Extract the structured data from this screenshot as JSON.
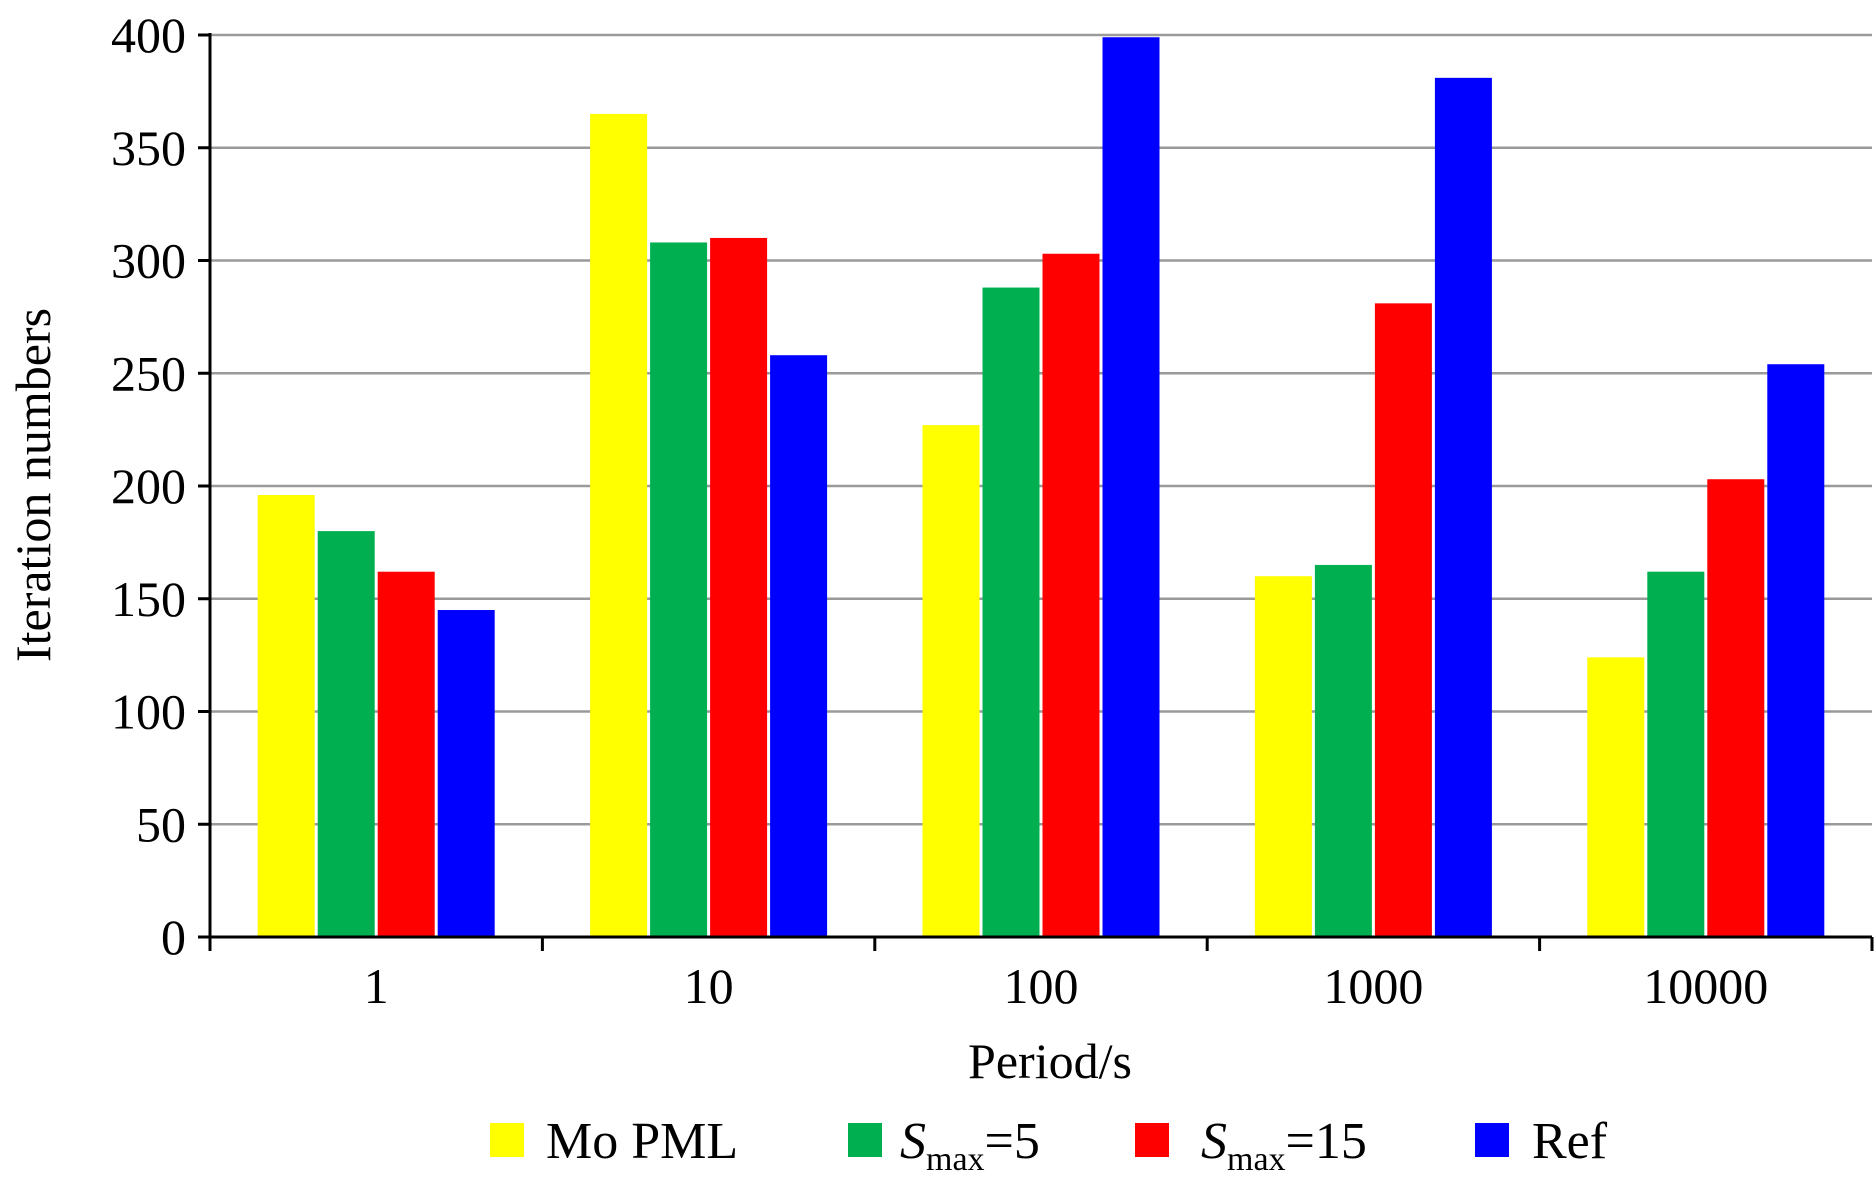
{
  "chart_data": {
    "type": "bar",
    "title": "",
    "xlabel": "Period/s",
    "ylabel": "Iteration numbers",
    "ylim": [
      0,
      400
    ],
    "yticks": [
      0,
      50,
      100,
      150,
      200,
      250,
      300,
      350,
      400
    ],
    "grid": true,
    "legend_position": "bottom",
    "categories": [
      "1",
      "10",
      "100",
      "1000",
      "10000"
    ],
    "series": [
      {
        "name": "Mo PML",
        "color": "#ffff00",
        "values": [
          196,
          365,
          227,
          160,
          124
        ]
      },
      {
        "name": "S_max=5",
        "color": "#00b050",
        "values": [
          180,
          308,
          288,
          165,
          162
        ]
      },
      {
        "name": "S_max=15",
        "color": "#ff0000",
        "values": [
          162,
          310,
          303,
          281,
          203
        ]
      },
      {
        "name": "Ref",
        "color": "#0000ff",
        "values": [
          145,
          258,
          399,
          381,
          254
        ]
      }
    ]
  },
  "legend": [
    {
      "label": "Mo PML"
    },
    {
      "label_italic": "S",
      "label_sub": "max",
      "label_rest": "=5"
    },
    {
      "label_italic": "S",
      "label_sub": "max",
      "label_rest": "=15"
    },
    {
      "label": "Ref"
    }
  ]
}
